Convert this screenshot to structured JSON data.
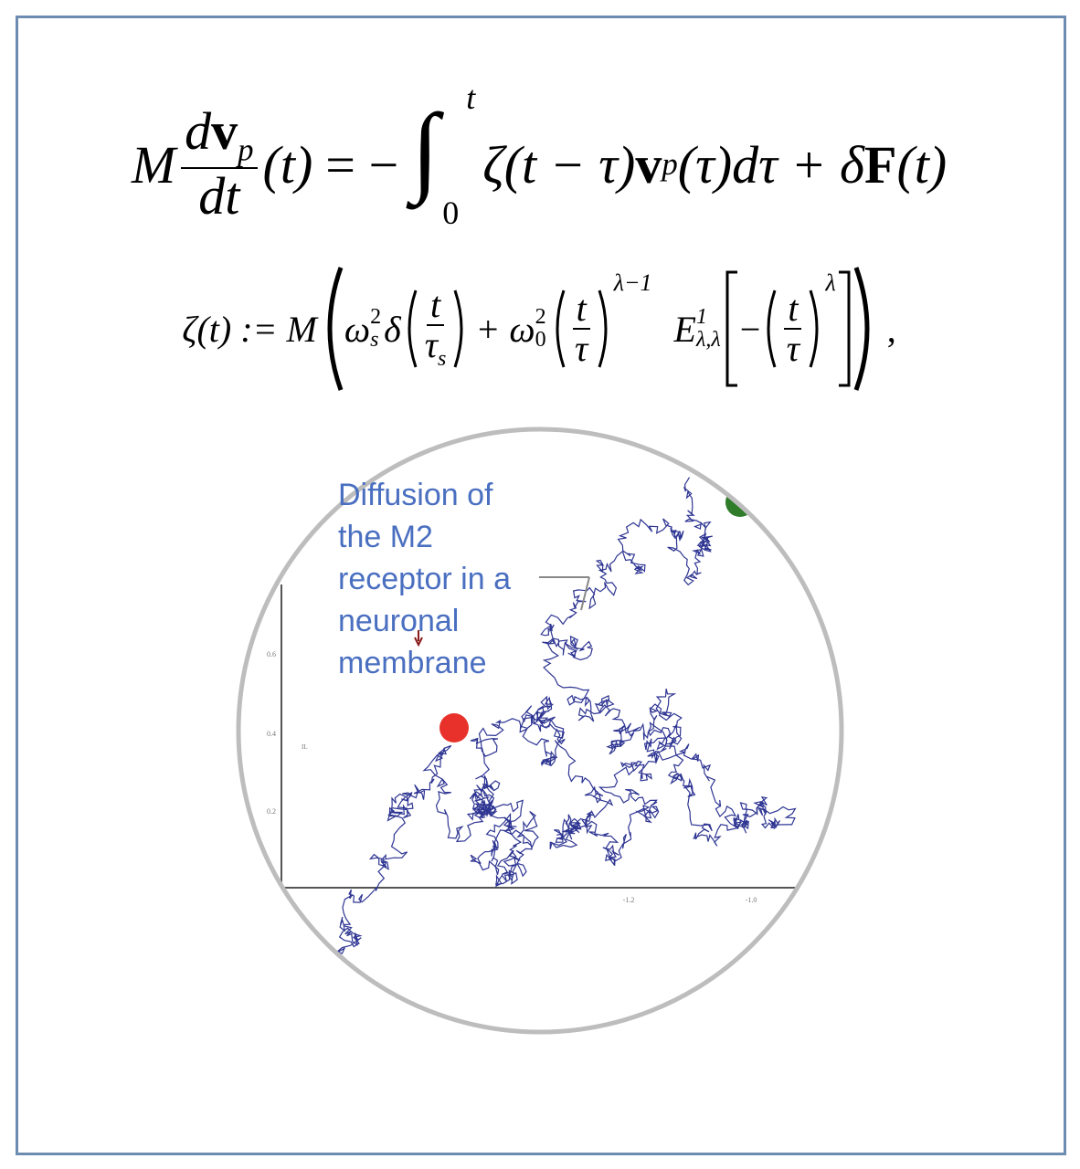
{
  "equation_1": {
    "M": "M",
    "num_d": "d",
    "num_v": "v",
    "num_sub": "p",
    "den": "dt",
    "arg": "(t)",
    "equals": "= −",
    "integral": "∫",
    "upper": "t",
    "lower": "0",
    "kernel": "ζ(t − τ)",
    "v": "v",
    "v_sub": "p",
    "tail": "(τ)dτ + δ",
    "F": "F",
    "F_arg": "(t)"
  },
  "equation_2": {
    "lhs": "ζ(t) := M",
    "omega_s": "ω",
    "omega_s_sup": "2",
    "omega_s_sub": "s",
    "delta": "δ",
    "frac1_num": "t",
    "frac1_den": "τ",
    "frac1_den_sub": "s",
    "plus_omega": "+ ω",
    "omega_0_sup": "2",
    "omega_0_sub": "0",
    "frac2_num": "t",
    "frac2_den": "τ",
    "exp1": "λ−1",
    "E": "E",
    "E_sup": "1",
    "E_sub": "λ,λ",
    "minus": "−",
    "frac3_num": "t",
    "frac3_den": "τ",
    "exp2": "λ",
    "comma": ","
  },
  "figure": {
    "annotation": [
      "Diffusion of",
      "the M2",
      "receptor in a",
      "neuronal",
      "membrane"
    ],
    "y_tick_labels": [
      "0.6",
      "0.4",
      "0.2"
    ],
    "x_tick_labels": [
      "-1.2",
      "-1.0"
    ],
    "inset_label": "IL"
  }
}
